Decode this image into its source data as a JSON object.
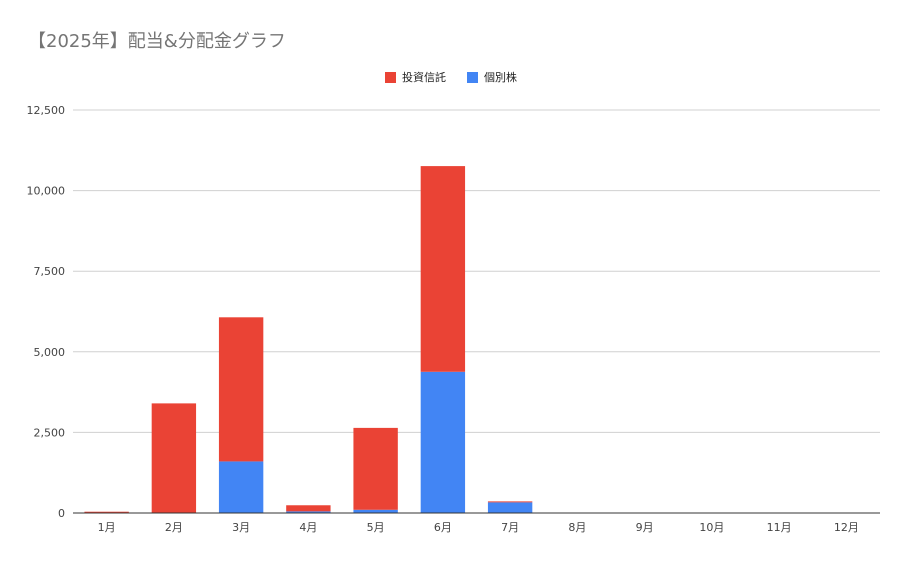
{
  "chart_data": {
    "type": "bar",
    "stacked": true,
    "title": "【2025年】配当&分配金グラフ",
    "xlabel": "",
    "ylabel": "",
    "categories": [
      "1月",
      "2月",
      "3月",
      "4月",
      "5月",
      "6月",
      "7月",
      "8月",
      "9月",
      "10月",
      "11月",
      "12月"
    ],
    "series": [
      {
        "name": "個別株",
        "color": "#4285f4",
        "values": [
          0,
          0,
          1600,
          50,
          100,
          4380,
          330,
          0,
          0,
          0,
          0,
          0
        ]
      },
      {
        "name": "投資信託",
        "color": "#ea4335",
        "values": [
          40,
          3400,
          4470,
          190,
          2540,
          6380,
          30,
          0,
          0,
          0,
          0,
          0
        ]
      }
    ],
    "ylim": [
      0,
      12500
    ],
    "yticks": [
      0,
      2500,
      5000,
      7500,
      10000,
      12500
    ],
    "ytick_labels": [
      "0",
      "2,500",
      "5,000",
      "7,500",
      "10,000",
      "12,500"
    ],
    "grid": true,
    "legend_position": "top-center",
    "legend_order": [
      "投資信託",
      "個別株"
    ]
  }
}
